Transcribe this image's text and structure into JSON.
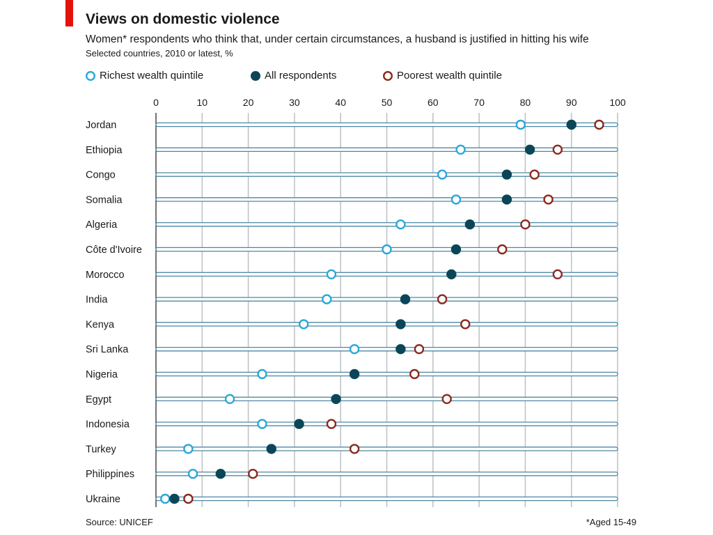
{
  "chart_data": {
    "type": "scatter",
    "title": "Views on domestic violence",
    "subtitle": "Women* respondents who think that, under certain circumstances, a husband is justified in hitting his wife",
    "subtitle2": "Selected countries, 2010 or latest, %",
    "source": "Source: UNICEF",
    "footnote": "*Aged 15-49",
    "xlim": [
      0,
      100
    ],
    "xticks": [
      "0",
      "10",
      "20",
      "30",
      "40",
      "50",
      "60",
      "70",
      "80",
      "90",
      "100"
    ],
    "grid": true,
    "legend_position": "top-left",
    "categories": [
      "Jordan",
      "Ethiopia",
      "Congo",
      "Somalia",
      "Algeria",
      "Côte d'Ivoire",
      "Morocco",
      "India",
      "Kenya",
      "Sri Lanka",
      "Nigeria",
      "Egypt",
      "Indonesia",
      "Turkey",
      "Philippines",
      "Ukraine"
    ],
    "series": [
      {
        "name": "Richest wealth quintile",
        "color": "#29a8d9",
        "style": "hollow",
        "values": [
          79,
          66,
          62,
          65,
          53,
          50,
          38,
          37,
          32,
          43,
          23,
          16,
          23,
          7,
          8,
          2
        ]
      },
      {
        "name": "All respondents",
        "color": "#0b4558",
        "style": "filled",
        "values": [
          90,
          81,
          76,
          76,
          68,
          65,
          64,
          54,
          53,
          53,
          43,
          39,
          31,
          25,
          14,
          4
        ]
      },
      {
        "name": "Poorest wealth quintile",
        "color": "#8b2a1c",
        "style": "hollow",
        "values": [
          96,
          87,
          82,
          85,
          80,
          75,
          87,
          62,
          67,
          57,
          56,
          63,
          38,
          43,
          21,
          7
        ]
      }
    ]
  }
}
